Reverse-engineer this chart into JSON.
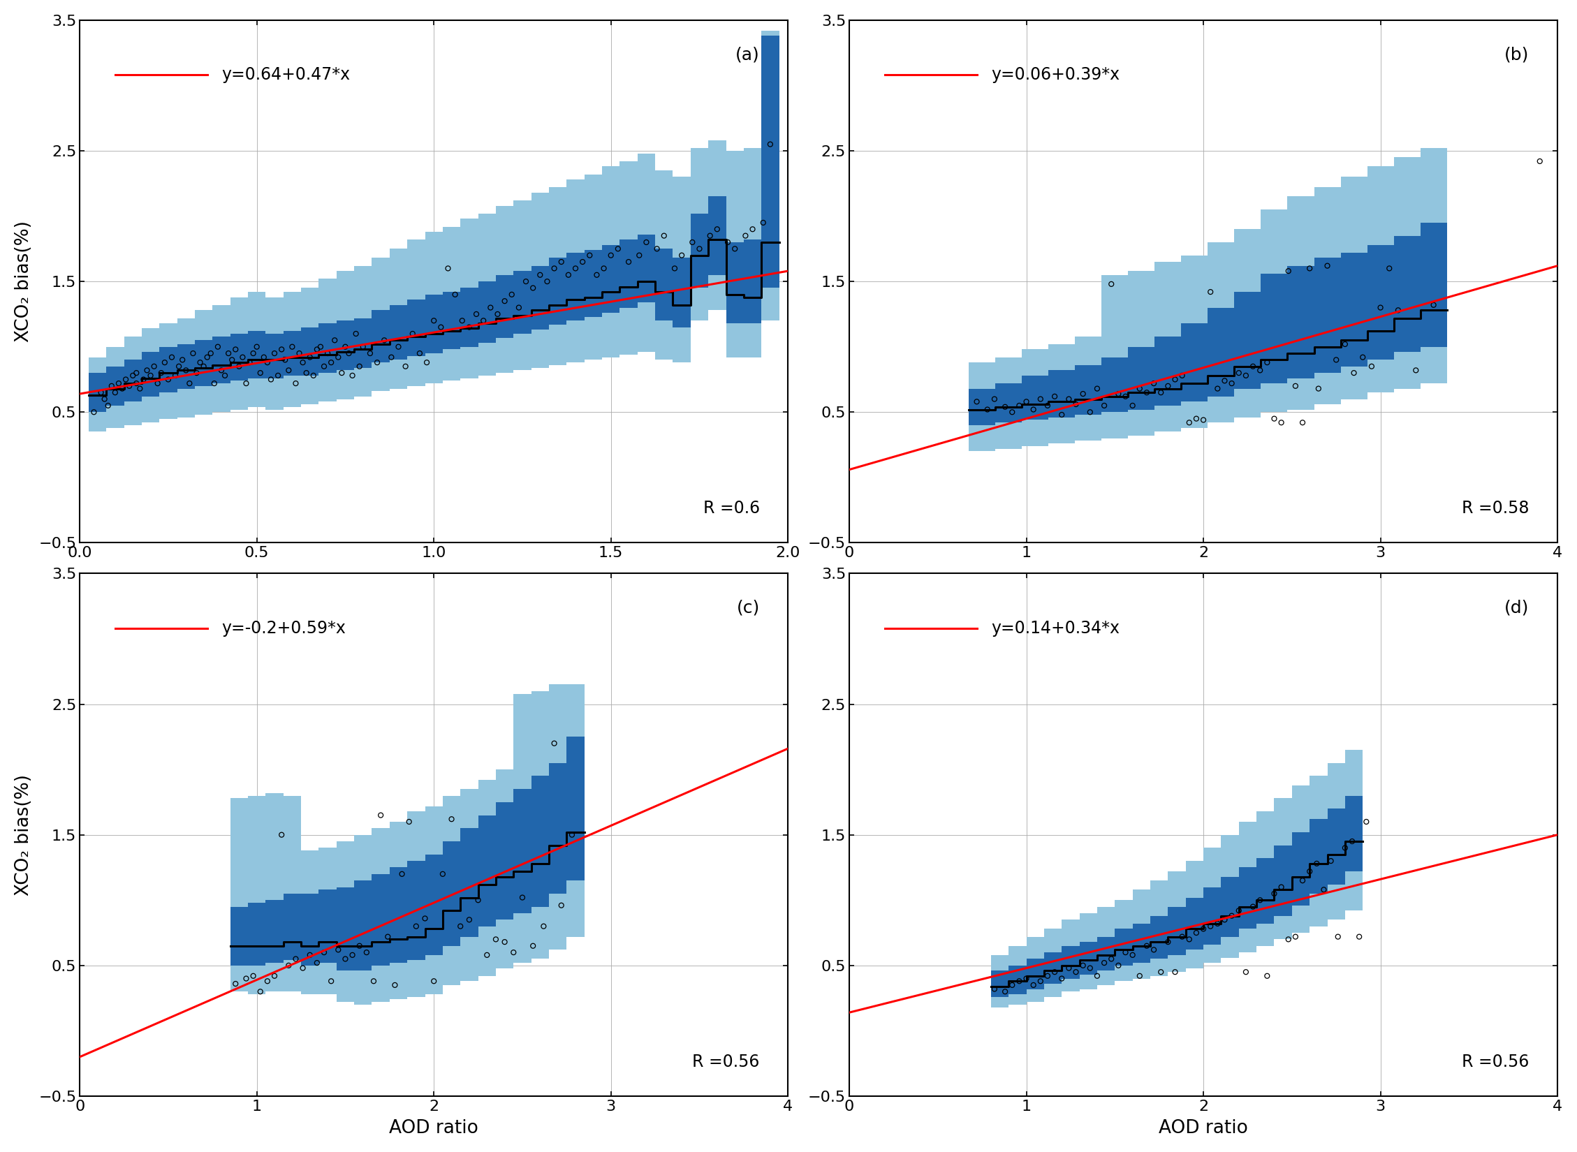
{
  "panels": [
    {
      "label": "(a)",
      "eq": "y=0.64+0.47*x",
      "intercept": 0.64,
      "slope": 0.47,
      "R": "R =0.6",
      "xlim": [
        0,
        2
      ],
      "xticks": [
        0,
        0.5,
        1.0,
        1.5,
        2.0
      ],
      "scatter_x": [
        0.04,
        0.06,
        0.07,
        0.08,
        0.09,
        0.1,
        0.11,
        0.12,
        0.13,
        0.14,
        0.15,
        0.16,
        0.16,
        0.17,
        0.18,
        0.19,
        0.2,
        0.21,
        0.22,
        0.23,
        0.24,
        0.25,
        0.26,
        0.27,
        0.28,
        0.29,
        0.3,
        0.31,
        0.32,
        0.33,
        0.34,
        0.35,
        0.36,
        0.37,
        0.38,
        0.39,
        0.4,
        0.41,
        0.42,
        0.43,
        0.44,
        0.45,
        0.46,
        0.47,
        0.48,
        0.49,
        0.5,
        0.51,
        0.52,
        0.53,
        0.54,
        0.55,
        0.56,
        0.57,
        0.58,
        0.59,
        0.6,
        0.61,
        0.62,
        0.63,
        0.64,
        0.65,
        0.66,
        0.67,
        0.68,
        0.69,
        0.7,
        0.71,
        0.72,
        0.73,
        0.74,
        0.75,
        0.76,
        0.77,
        0.78,
        0.79,
        0.8,
        0.82,
        0.84,
        0.86,
        0.88,
        0.9,
        0.92,
        0.94,
        0.96,
        0.98,
        1.0,
        1.02,
        1.04,
        1.06,
        1.08,
        1.1,
        1.12,
        1.14,
        1.16,
        1.18,
        1.2,
        1.22,
        1.24,
        1.26,
        1.28,
        1.3,
        1.32,
        1.34,
        1.36,
        1.38,
        1.4,
        1.42,
        1.44,
        1.46,
        1.48,
        1.5,
        1.52,
        1.55,
        1.58,
        1.6,
        1.63,
        1.65,
        1.68,
        1.7,
        1.73,
        1.75,
        1.78,
        1.8,
        1.83,
        1.85,
        1.88,
        1.9,
        1.93,
        1.95
      ],
      "scatter_y": [
        0.5,
        0.65,
        0.6,
        0.55,
        0.7,
        0.65,
        0.72,
        0.68,
        0.75,
        0.7,
        0.78,
        0.72,
        0.8,
        0.68,
        0.75,
        0.82,
        0.78,
        0.85,
        0.72,
        0.8,
        0.88,
        0.75,
        0.92,
        0.78,
        0.85,
        0.9,
        0.82,
        0.72,
        0.95,
        0.8,
        0.88,
        0.85,
        0.92,
        0.95,
        0.72,
        1.0,
        0.82,
        0.78,
        0.95,
        0.9,
        0.98,
        0.85,
        0.92,
        0.72,
        0.88,
        0.95,
        1.0,
        0.8,
        0.92,
        0.88,
        0.75,
        0.95,
        0.78,
        0.98,
        0.9,
        0.82,
        1.0,
        0.72,
        0.95,
        0.88,
        0.8,
        0.92,
        0.78,
        0.98,
        1.0,
        0.85,
        0.95,
        0.88,
        1.05,
        0.92,
        0.8,
        1.0,
        0.95,
        0.78,
        1.1,
        0.85,
        1.0,
        0.95,
        0.88,
        1.05,
        0.92,
        1.0,
        0.85,
        1.1,
        0.95,
        0.88,
        1.2,
        1.15,
        1.6,
        1.4,
        1.2,
        1.15,
        1.25,
        1.2,
        1.3,
        1.25,
        1.35,
        1.4,
        1.3,
        1.5,
        1.45,
        1.55,
        1.5,
        1.6,
        1.65,
        1.55,
        1.6,
        1.65,
        1.7,
        1.55,
        1.6,
        1.7,
        1.75,
        1.65,
        1.7,
        1.8,
        1.75,
        1.85,
        1.6,
        1.7,
        1.8,
        1.75,
        1.85,
        1.9,
        1.8,
        1.75,
        1.85,
        1.9,
        1.95,
        2.55
      ],
      "bin_x": [
        0.05,
        0.1,
        0.15,
        0.2,
        0.25,
        0.3,
        0.35,
        0.4,
        0.45,
        0.5,
        0.55,
        0.6,
        0.65,
        0.7,
        0.75,
        0.8,
        0.85,
        0.9,
        0.95,
        1.0,
        1.05,
        1.1,
        1.15,
        1.2,
        1.25,
        1.3,
        1.35,
        1.4,
        1.45,
        1.5,
        1.55,
        1.6,
        1.65,
        1.7,
        1.75,
        1.8,
        1.85,
        1.9,
        1.95
      ],
      "bin_median": [
        0.63,
        0.68,
        0.72,
        0.76,
        0.8,
        0.82,
        0.84,
        0.86,
        0.88,
        0.9,
        0.9,
        0.92,
        0.92,
        0.94,
        0.96,
        0.98,
        1.02,
        1.05,
        1.08,
        1.1,
        1.12,
        1.14,
        1.18,
        1.22,
        1.24,
        1.28,
        1.32,
        1.36,
        1.38,
        1.42,
        1.46,
        1.5,
        1.42,
        1.32,
        1.7,
        1.82,
        1.4,
        1.38,
        1.8
      ],
      "bin_q1": [
        0.5,
        0.55,
        0.58,
        0.62,
        0.65,
        0.68,
        0.7,
        0.72,
        0.74,
        0.76,
        0.76,
        0.78,
        0.78,
        0.8,
        0.82,
        0.84,
        0.88,
        0.9,
        0.93,
        0.95,
        0.98,
        1.0,
        1.03,
        1.07,
        1.1,
        1.13,
        1.17,
        1.2,
        1.23,
        1.26,
        1.3,
        1.34,
        1.2,
        1.15,
        1.45,
        1.55,
        1.18,
        1.18,
        1.45
      ],
      "bin_q3": [
        0.8,
        0.85,
        0.9,
        0.96,
        1.0,
        1.02,
        1.05,
        1.08,
        1.1,
        1.12,
        1.1,
        1.12,
        1.15,
        1.18,
        1.2,
        1.22,
        1.28,
        1.32,
        1.36,
        1.4,
        1.42,
        1.45,
        1.5,
        1.55,
        1.58,
        1.62,
        1.68,
        1.72,
        1.74,
        1.78,
        1.82,
        1.86,
        1.75,
        1.68,
        2.02,
        2.15,
        1.8,
        1.82,
        3.38
      ],
      "bin_min": [
        0.35,
        0.38,
        0.4,
        0.42,
        0.45,
        0.46,
        0.48,
        0.5,
        0.52,
        0.54,
        0.52,
        0.54,
        0.56,
        0.58,
        0.6,
        0.62,
        0.66,
        0.68,
        0.7,
        0.72,
        0.74,
        0.76,
        0.78,
        0.8,
        0.82,
        0.84,
        0.86,
        0.88,
        0.9,
        0.92,
        0.94,
        0.96,
        0.9,
        0.88,
        1.2,
        1.28,
        0.92,
        0.92,
        1.2
      ],
      "bin_max": [
        0.92,
        1.0,
        1.08,
        1.14,
        1.18,
        1.22,
        1.28,
        1.32,
        1.38,
        1.42,
        1.38,
        1.42,
        1.45,
        1.52,
        1.58,
        1.62,
        1.68,
        1.75,
        1.82,
        1.88,
        1.92,
        1.98,
        2.02,
        2.08,
        2.12,
        2.18,
        2.22,
        2.28,
        2.32,
        2.38,
        2.42,
        2.48,
        2.35,
        2.3,
        2.52,
        2.58,
        2.5,
        2.52,
        3.42
      ]
    },
    {
      "label": "(b)",
      "eq": "y=0.06+0.39*x",
      "intercept": 0.06,
      "slope": 0.39,
      "R": "R =0.58",
      "xlim": [
        0,
        4
      ],
      "xticks": [
        0,
        1,
        2,
        3,
        4
      ],
      "scatter_x": [
        0.72,
        0.78,
        0.82,
        0.88,
        0.92,
        0.96,
        1.0,
        1.04,
        1.08,
        1.12,
        1.16,
        1.2,
        1.24,
        1.28,
        1.32,
        1.36,
        1.4,
        1.44,
        1.48,
        1.52,
        1.56,
        1.6,
        1.64,
        1.68,
        1.72,
        1.76,
        1.8,
        1.84,
        1.88,
        1.92,
        1.96,
        2.0,
        2.04,
        2.08,
        2.12,
        2.16,
        2.2,
        2.24,
        2.28,
        2.32,
        2.36,
        2.4,
        2.44,
        2.48,
        2.52,
        2.56,
        2.6,
        2.65,
        2.7,
        2.75,
        2.8,
        2.85,
        2.9,
        2.95,
        3.0,
        3.05,
        3.1,
        3.2,
        3.3,
        3.9
      ],
      "scatter_y": [
        0.58,
        0.52,
        0.6,
        0.54,
        0.5,
        0.55,
        0.58,
        0.52,
        0.6,
        0.55,
        0.62,
        0.48,
        0.6,
        0.56,
        0.64,
        0.5,
        0.68,
        0.55,
        1.48,
        0.64,
        0.62,
        0.55,
        0.68,
        0.65,
        0.72,
        0.65,
        0.7,
        0.75,
        0.78,
        0.42,
        0.45,
        0.44,
        1.42,
        0.68,
        0.74,
        0.72,
        0.8,
        0.78,
        0.85,
        0.82,
        0.88,
        0.45,
        0.42,
        1.58,
        0.7,
        0.42,
        1.6,
        0.68,
        1.62,
        0.9,
        1.02,
        0.8,
        0.92,
        0.85,
        1.3,
        1.6,
        1.28,
        0.82,
        1.32,
        2.42
      ],
      "bin_x": [
        0.75,
        0.9,
        1.05,
        1.2,
        1.35,
        1.5,
        1.65,
        1.8,
        1.95,
        2.1,
        2.25,
        2.4,
        2.55,
        2.7,
        2.85,
        3.0,
        3.15,
        3.3
      ],
      "bin_median": [
        0.52,
        0.54,
        0.56,
        0.58,
        0.6,
        0.62,
        0.65,
        0.68,
        0.72,
        0.78,
        0.85,
        0.9,
        0.95,
        1.0,
        1.05,
        1.12,
        1.22,
        1.28
      ],
      "bin_q1": [
        0.4,
        0.42,
        0.44,
        0.46,
        0.48,
        0.5,
        0.52,
        0.55,
        0.58,
        0.62,
        0.68,
        0.72,
        0.76,
        0.8,
        0.85,
        0.9,
        0.96,
        1.0
      ],
      "bin_q3": [
        0.68,
        0.72,
        0.78,
        0.82,
        0.86,
        0.92,
        1.0,
        1.08,
        1.18,
        1.3,
        1.42,
        1.56,
        1.62,
        1.68,
        1.72,
        1.78,
        1.85,
        1.95
      ],
      "bin_min": [
        0.2,
        0.22,
        0.24,
        0.26,
        0.28,
        0.3,
        0.32,
        0.35,
        0.38,
        0.42,
        0.46,
        0.5,
        0.52,
        0.56,
        0.6,
        0.65,
        0.68,
        0.72
      ],
      "bin_max": [
        0.88,
        0.92,
        0.98,
        1.02,
        1.08,
        1.55,
        1.58,
        1.65,
        1.7,
        1.8,
        1.9,
        2.05,
        2.15,
        2.22,
        2.3,
        2.38,
        2.45,
        2.52
      ]
    },
    {
      "label": "(c)",
      "eq": "y=-0.2+0.59*x",
      "intercept": -0.2,
      "slope": 0.59,
      "R": "R =0.56",
      "xlim": [
        0,
        4
      ],
      "xticks": [
        0,
        1,
        2,
        3,
        4
      ],
      "scatter_x": [
        0.88,
        0.94,
        0.98,
        1.02,
        1.06,
        1.1,
        1.14,
        1.18,
        1.22,
        1.26,
        1.3,
        1.34,
        1.38,
        1.42,
        1.46,
        1.5,
        1.54,
        1.58,
        1.62,
        1.66,
        1.7,
        1.74,
        1.78,
        1.82,
        1.86,
        1.9,
        1.95,
        2.0,
        2.05,
        2.1,
        2.15,
        2.2,
        2.25,
        2.3,
        2.35,
        2.4,
        2.45,
        2.5,
        2.56,
        2.62,
        2.68,
        2.72,
        2.78
      ],
      "scatter_y": [
        0.36,
        0.4,
        0.42,
        0.3,
        0.38,
        0.42,
        1.5,
        0.5,
        0.55,
        0.48,
        0.58,
        0.52,
        0.6,
        0.38,
        0.62,
        0.55,
        0.58,
        0.65,
        0.6,
        0.38,
        1.65,
        0.72,
        0.35,
        1.2,
        1.6,
        0.8,
        0.86,
        0.38,
        1.2,
        1.62,
        0.8,
        0.85,
        1.0,
        0.58,
        0.7,
        0.68,
        0.6,
        1.02,
        0.65,
        0.8,
        2.2,
        0.96,
        1.5
      ],
      "bin_x": [
        0.9,
        1.0,
        1.1,
        1.2,
        1.3,
        1.4,
        1.5,
        1.6,
        1.7,
        1.8,
        1.9,
        2.0,
        2.1,
        2.2,
        2.3,
        2.4,
        2.5,
        2.6,
        2.7,
        2.8
      ],
      "bin_median": [
        0.65,
        0.65,
        0.65,
        0.68,
        0.65,
        0.68,
        0.65,
        0.65,
        0.68,
        0.7,
        0.72,
        0.78,
        0.92,
        1.02,
        1.12,
        1.18,
        1.22,
        1.28,
        1.42,
        1.52
      ],
      "bin_q1": [
        0.5,
        0.5,
        0.52,
        0.54,
        0.5,
        0.52,
        0.46,
        0.46,
        0.5,
        0.52,
        0.54,
        0.58,
        0.65,
        0.72,
        0.8,
        0.85,
        0.9,
        0.95,
        1.05,
        1.15
      ],
      "bin_q3": [
        0.95,
        0.98,
        1.0,
        1.05,
        1.05,
        1.08,
        1.1,
        1.15,
        1.2,
        1.25,
        1.3,
        1.35,
        1.45,
        1.55,
        1.65,
        1.75,
        1.85,
        1.95,
        2.05,
        2.25
      ],
      "bin_min": [
        0.3,
        0.28,
        0.3,
        0.3,
        0.28,
        0.28,
        0.22,
        0.2,
        0.22,
        0.24,
        0.26,
        0.28,
        0.35,
        0.38,
        0.42,
        0.48,
        0.52,
        0.55,
        0.62,
        0.72
      ],
      "bin_max": [
        1.78,
        1.8,
        1.82,
        1.8,
        1.38,
        1.4,
        1.45,
        1.5,
        1.55,
        1.6,
        1.68,
        1.72,
        1.8,
        1.85,
        1.92,
        2.0,
        2.58,
        2.6,
        2.65,
        2.65
      ]
    },
    {
      "label": "(d)",
      "eq": "y=0.14+0.34*x",
      "intercept": 0.14,
      "slope": 0.34,
      "R": "R =0.56",
      "xlim": [
        0,
        4
      ],
      "xticks": [
        0,
        1,
        2,
        3,
        4
      ],
      "scatter_x": [
        0.82,
        0.88,
        0.92,
        0.96,
        1.0,
        1.04,
        1.08,
        1.12,
        1.16,
        1.2,
        1.24,
        1.28,
        1.32,
        1.36,
        1.4,
        1.44,
        1.48,
        1.52,
        1.56,
        1.6,
        1.64,
        1.68,
        1.72,
        1.76,
        1.8,
        1.84,
        1.88,
        1.92,
        1.96,
        2.0,
        2.04,
        2.08,
        2.12,
        2.16,
        2.2,
        2.24,
        2.28,
        2.32,
        2.36,
        2.4,
        2.44,
        2.48,
        2.52,
        2.56,
        2.6,
        2.64,
        2.68,
        2.72,
        2.76,
        2.8,
        2.84,
        2.88,
        2.92
      ],
      "scatter_y": [
        0.32,
        0.3,
        0.35,
        0.38,
        0.4,
        0.35,
        0.38,
        0.42,
        0.45,
        0.4,
        0.48,
        0.45,
        0.5,
        0.48,
        0.42,
        0.52,
        0.55,
        0.5,
        0.6,
        0.58,
        0.42,
        0.65,
        0.62,
        0.45,
        0.68,
        0.45,
        0.72,
        0.7,
        0.75,
        0.78,
        0.8,
        0.82,
        0.85,
        0.88,
        0.92,
        0.45,
        0.95,
        1.0,
        0.42,
        1.05,
        1.1,
        0.7,
        0.72,
        1.15,
        1.22,
        1.28,
        1.08,
        1.3,
        0.72,
        1.4,
        1.45,
        0.72,
        1.6
      ],
      "bin_x": [
        0.85,
        0.95,
        1.05,
        1.15,
        1.25,
        1.35,
        1.45,
        1.55,
        1.65,
        1.75,
        1.85,
        1.95,
        2.05,
        2.15,
        2.25,
        2.35,
        2.45,
        2.55,
        2.65,
        2.75,
        2.85
      ],
      "bin_median": [
        0.34,
        0.38,
        0.42,
        0.46,
        0.5,
        0.54,
        0.58,
        0.62,
        0.65,
        0.68,
        0.72,
        0.78,
        0.82,
        0.88,
        0.95,
        1.0,
        1.08,
        1.18,
        1.28,
        1.35,
        1.45
      ],
      "bin_q1": [
        0.26,
        0.28,
        0.32,
        0.36,
        0.4,
        0.43,
        0.46,
        0.5,
        0.52,
        0.55,
        0.58,
        0.62,
        0.66,
        0.72,
        0.78,
        0.82,
        0.88,
        0.96,
        1.05,
        1.12,
        1.22
      ],
      "bin_q3": [
        0.46,
        0.5,
        0.55,
        0.6,
        0.65,
        0.68,
        0.72,
        0.78,
        0.82,
        0.88,
        0.95,
        1.02,
        1.1,
        1.18,
        1.25,
        1.32,
        1.42,
        1.52,
        1.62,
        1.7,
        1.8
      ],
      "bin_min": [
        0.18,
        0.2,
        0.22,
        0.26,
        0.3,
        0.32,
        0.35,
        0.38,
        0.4,
        0.42,
        0.45,
        0.48,
        0.52,
        0.56,
        0.6,
        0.65,
        0.7,
        0.75,
        0.8,
        0.85,
        0.92
      ],
      "bin_max": [
        0.58,
        0.65,
        0.72,
        0.78,
        0.85,
        0.9,
        0.95,
        1.0,
        1.08,
        1.15,
        1.22,
        1.3,
        1.4,
        1.5,
        1.6,
        1.68,
        1.78,
        1.88,
        1.95,
        2.05,
        2.15
      ]
    }
  ],
  "ylim": [
    -0.5,
    3.5
  ],
  "yticks": [
    -0.5,
    0.5,
    1.5,
    2.5,
    3.5
  ],
  "ylabel": "XCO₂ bias(%)",
  "xlabel": "AOD ratio",
  "light_blue": "#92C5DE",
  "dark_blue": "#2166AC",
  "red_color": "#FF0000",
  "bg_color": "#FFFFFF"
}
